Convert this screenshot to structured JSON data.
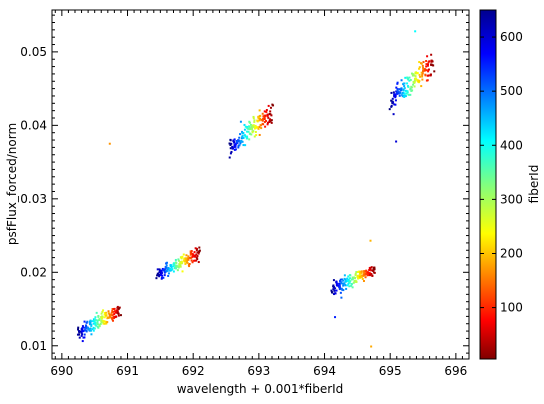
{
  "chart_data": {
    "type": "scatter",
    "title": "",
    "xlabel": "wavelength + 0.001*fiberId",
    "ylabel": "psfFlux_forced/norm",
    "xlim": [
      689.85,
      696.2
    ],
    "ylim": [
      0.0082,
      0.0557
    ],
    "xticks": [
      690,
      691,
      692,
      693,
      694,
      695,
      696
    ],
    "yticks": [
      0.01,
      0.02,
      0.03,
      0.04,
      0.05
    ],
    "ytick_labels": [
      "0.01",
      "0.02",
      "0.03",
      "0.04",
      "0.05"
    ],
    "grid": false,
    "colorbar": {
      "label": "fiberId",
      "colormap": "jet",
      "range": [
        5,
        650
      ],
      "ticks": [
        100,
        200,
        300,
        400,
        500,
        600
      ]
    },
    "clusters": [
      {
        "center_wavelength": 690.245,
        "flux_at_start": 0.0117,
        "flux_at_end": 0.0149,
        "spread": 0.0012
      },
      {
        "center_wavelength": 691.445,
        "flux_at_start": 0.0197,
        "flux_at_end": 0.0226,
        "spread": 0.0009
      },
      {
        "center_wavelength": 692.555,
        "flux_at_start": 0.0368,
        "flux_at_end": 0.0418,
        "spread": 0.0016
      },
      {
        "center_wavelength": 694.115,
        "flux_at_start": 0.0178,
        "flux_at_end": 0.0203,
        "spread": 0.001
      },
      {
        "center_wavelength": 695.005,
        "flux_at_start": 0.0435,
        "flux_at_end": 0.0484,
        "spread": 0.0018
      }
    ],
    "outliers": [
      {
        "x": 690.73,
        "y": 0.0375
      },
      {
        "x": 694.16,
        "y": 0.0139
      },
      {
        "x": 694.71,
        "y": 0.0099
      },
      {
        "x": 694.7,
        "y": 0.0243
      },
      {
        "x": 695.09,
        "y": 0.0378
      },
      {
        "x": 695.38,
        "y": 0.0528
      }
    ]
  }
}
